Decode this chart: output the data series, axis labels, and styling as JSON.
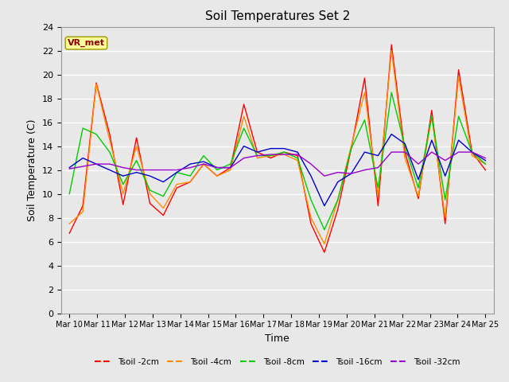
{
  "title": "Soil Temperatures Set 2",
  "xlabel": "Time",
  "ylabel": "Soil Temperature (C)",
  "fig_color": "#e8e8e8",
  "ax_color": "#e8e8e8",
  "ylim": [
    0,
    24
  ],
  "yticks": [
    0,
    2,
    4,
    6,
    8,
    10,
    12,
    14,
    16,
    18,
    20,
    22,
    24
  ],
  "x_labels": [
    "Mar 10",
    "Mar 11",
    "Mar 12",
    "Mar 13",
    "Mar 14",
    "Mar 15",
    "Mar 16",
    "Mar 17",
    "Mar 18",
    "Mar 19",
    "Mar 20",
    "Mar 21",
    "Mar 22",
    "Mar 23",
    "Mar 24",
    "Mar 25"
  ],
  "annotation_text": "VR_met",
  "annotation_color": "#8b0000",
  "annotation_bg": "#ffff99",
  "series": {
    "Tsoil -2cm": [
      6.7,
      9.0,
      19.3,
      15.0,
      9.1,
      14.7,
      9.2,
      8.2,
      10.5,
      11.0,
      12.5,
      11.5,
      12.2,
      17.5,
      13.5,
      13.0,
      13.5,
      13.2,
      7.5,
      5.1,
      8.7,
      13.8,
      19.7,
      9.0,
      22.5,
      13.5,
      9.6,
      17.0,
      7.5,
      20.4,
      13.5,
      12.0
    ],
    "Tsoil -4cm": [
      7.5,
      8.5,
      19.2,
      14.5,
      10.0,
      14.0,
      10.0,
      8.8,
      10.8,
      11.0,
      12.5,
      11.5,
      12.0,
      16.5,
      13.0,
      13.2,
      13.3,
      12.8,
      8.0,
      5.8,
      9.5,
      14.0,
      18.5,
      9.8,
      22.0,
      13.0,
      9.8,
      16.5,
      8.0,
      19.8,
      13.2,
      12.5
    ],
    "Tsoil -8cm": [
      10.0,
      15.5,
      15.0,
      13.5,
      10.8,
      12.8,
      10.3,
      9.8,
      11.8,
      11.5,
      13.2,
      12.0,
      12.5,
      15.5,
      13.2,
      13.2,
      13.5,
      13.0,
      9.5,
      7.0,
      9.5,
      13.8,
      16.2,
      10.5,
      18.5,
      14.0,
      10.5,
      16.5,
      9.5,
      16.5,
      13.5,
      12.5
    ],
    "Tsoil -16cm": [
      12.2,
      13.0,
      12.5,
      12.0,
      11.5,
      11.8,
      11.5,
      11.0,
      11.8,
      12.5,
      12.7,
      12.2,
      12.2,
      14.0,
      13.5,
      13.8,
      13.8,
      13.5,
      11.5,
      9.0,
      11.0,
      11.7,
      13.5,
      13.2,
      15.0,
      14.2,
      11.2,
      14.5,
      11.5,
      14.5,
      13.5,
      12.8
    ],
    "Tsoil -32cm": [
      12.1,
      12.3,
      12.5,
      12.5,
      12.2,
      12.0,
      12.0,
      12.0,
      12.0,
      12.2,
      12.5,
      12.2,
      12.2,
      13.0,
      13.2,
      13.3,
      13.3,
      13.3,
      12.5,
      11.5,
      11.8,
      11.7,
      12.0,
      12.2,
      13.5,
      13.5,
      12.5,
      13.5,
      12.8,
      13.5,
      13.5,
      13.0
    ]
  },
  "colors": {
    "Tsoil -2cm": "#ff0000",
    "Tsoil -4cm": "#ff8c00",
    "Tsoil -8cm": "#00cc00",
    "Tsoil -16cm": "#0000cc",
    "Tsoil -32cm": "#9900cc"
  },
  "series_order": [
    "Tsoil -2cm",
    "Tsoil -4cm",
    "Tsoil -8cm",
    "Tsoil -16cm",
    "Tsoil -32cm"
  ]
}
